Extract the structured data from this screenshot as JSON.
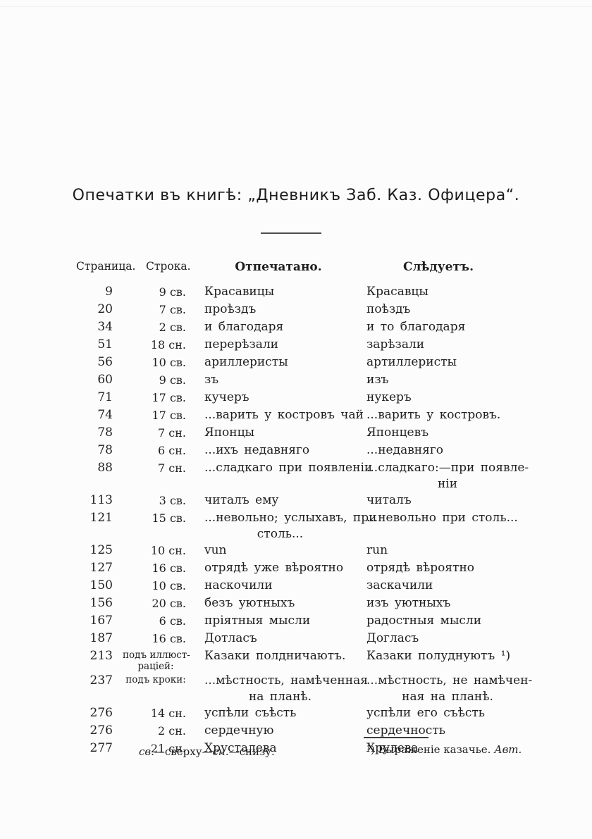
{
  "title": "Опечатки въ книгѣ: „Дневникъ Заб. Каз. Офицера“.",
  "table": {
    "columns": {
      "page": "Страница.",
      "line": "Строка.",
      "printed": "Отпечатано.",
      "correct": "Слѣдуетъ."
    },
    "rows": [
      {
        "page": "9",
        "line": "9 св.",
        "printed": [
          "Красавицы"
        ],
        "correct": [
          "Красавцы"
        ]
      },
      {
        "page": "20",
        "line": "7 св.",
        "printed": [
          "проѣздъ"
        ],
        "correct": [
          "поѣздъ"
        ]
      },
      {
        "page": "34",
        "line": "2 св.",
        "printed": [
          "и благодаря"
        ],
        "correct": [
          "и то благодаря"
        ]
      },
      {
        "page": "51",
        "line": "18 сн.",
        "printed": [
          "перерѣзали"
        ],
        "correct": [
          "зарѣзали"
        ]
      },
      {
        "page": "56",
        "line": "10 св.",
        "printed": [
          "ариллеристы"
        ],
        "correct": [
          "артиллеристы"
        ]
      },
      {
        "page": "60",
        "line": "9 св.",
        "printed": [
          "зъ"
        ],
        "correct": [
          "изъ"
        ]
      },
      {
        "page": "71",
        "line": "17 св.",
        "printed": [
          "кучеръ"
        ],
        "correct": [
          "нукеръ"
        ]
      },
      {
        "page": "74",
        "line": "17 св.",
        "printed": [
          "...варить у костровъ чай"
        ],
        "correct": [
          "...варить у костровъ."
        ]
      },
      {
        "page": "78",
        "line": "7 сн.",
        "printed": [
          "Японцы"
        ],
        "correct": [
          "Японцевъ"
        ]
      },
      {
        "page": "78",
        "line": "6 сн.",
        "printed": [
          "...ихъ недавняго"
        ],
        "correct": [
          "...недавняго"
        ]
      },
      {
        "page": "88",
        "line": "7 сн.",
        "printed": [
          "...сладкаго при появленіи"
        ],
        "correct": [
          "...сладкаго:—при появле-",
          "ніи"
        ]
      },
      {
        "page": "113",
        "line": "3 св.",
        "printed": [
          "читалъ ему"
        ],
        "correct": [
          "читалъ"
        ]
      },
      {
        "page": "121",
        "line": "15 св.",
        "printed": [
          "...невольно; услыхавъ, при",
          "столь..."
        ],
        "correct": [
          "...невольно при столь..."
        ]
      },
      {
        "page": "125",
        "line": "10 сн.",
        "printed": [
          "vun"
        ],
        "correct": [
          "run"
        ]
      },
      {
        "page": "127",
        "line": "16 св.",
        "printed": [
          "отрядѣ уже вѣроятно"
        ],
        "correct": [
          "отрядѣ вѣроятно"
        ]
      },
      {
        "page": "150",
        "line": "10 св.",
        "printed": [
          "наскочили"
        ],
        "correct": [
          "заскачили"
        ]
      },
      {
        "page": "156",
        "line": "20 св.",
        "printed": [
          "безъ уютныхъ"
        ],
        "correct": [
          "изъ уютныхъ"
        ]
      },
      {
        "page": "167",
        "line": "6 св.",
        "printed": [
          "пріятныя мысли"
        ],
        "correct": [
          "радостныя мысли"
        ]
      },
      {
        "page": "187",
        "line": "16 св.",
        "printed": [
          "Дотласъ"
        ],
        "correct": [
          "Догласъ"
        ]
      },
      {
        "page": "213",
        "line": [
          "подъ иллюст-",
          "раціей:"
        ],
        "printed": [
          "Казаки полдничаютъ."
        ],
        "correct": [
          "Казаки полуднуютъ ¹)"
        ]
      },
      {
        "page": "237",
        "line": [
          "подъ кроки:"
        ],
        "printed": [
          "...мѣстность, намѣченная",
          "на планѣ."
        ],
        "correct": [
          "...мѣстность, не намѣчен-",
          "ная на планѣ."
        ]
      },
      {
        "page": "276",
        "line": "14 сн.",
        "printed": [
          "успѣли съѣсть"
        ],
        "correct": [
          "успѣли его съѣсть"
        ]
      },
      {
        "page": "276",
        "line": "2 сн.",
        "printed": [
          "сердечную"
        ],
        "correct": [
          "сердечность"
        ]
      },
      {
        "page": "277",
        "line": "21 сн.",
        "printed": [
          "Хрусталева"
        ],
        "correct": [
          "Хрулева"
        ]
      }
    ]
  },
  "footnotes": {
    "abbrev": {
      "sv": "св.",
      "sv_expl": "—сверху—",
      "sn": "сн.",
      "sn_expl": "—снизу."
    },
    "note": {
      "marker": "¹) ",
      "text": "Выраженіе казачье. ",
      "author": "Авт."
    }
  }
}
